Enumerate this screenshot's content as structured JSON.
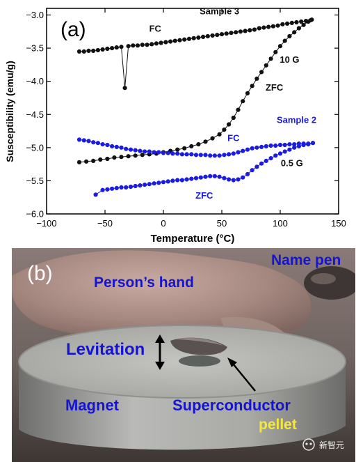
{
  "chart_data": {
    "type": "scatter",
    "panel_label": "(a)",
    "xlabel": "Temperature (°C)",
    "ylabel": "Susceptibility (emu/g)",
    "xlim": [
      -100,
      150
    ],
    "ylim": [
      -6.0,
      -2.9
    ],
    "xticks": [
      -100,
      -50,
      0,
      50,
      100,
      150
    ],
    "xtick_labels": [
      "−100",
      "−50",
      "0",
      "50",
      "100",
      "150"
    ],
    "yticks": [
      -6.0,
      -5.5,
      -5.0,
      -4.5,
      -4.0,
      -3.5,
      -3.0
    ],
    "ytick_labels": [
      "−6.0",
      "−5.5",
      "−5.0",
      "−4.5",
      "−4.0",
      "−3.5",
      "−3.0"
    ],
    "grid": false,
    "series": [
      {
        "group": "Sample 3",
        "field": "10 G",
        "mode": "FC",
        "color": "#111111",
        "points": [
          [
            -72,
            -3.55
          ],
          [
            -68,
            -3.55
          ],
          [
            -64,
            -3.54
          ],
          [
            -60,
            -3.54
          ],
          [
            -56,
            -3.53
          ],
          [
            -52,
            -3.52
          ],
          [
            -48,
            -3.51
          ],
          [
            -44,
            -3.5
          ],
          [
            -40,
            -3.49
          ],
          [
            -36,
            -3.48
          ],
          [
            -33,
            -4.1
          ],
          [
            -30,
            -3.47
          ],
          [
            -26,
            -3.46
          ],
          [
            -22,
            -3.46
          ],
          [
            -18,
            -3.45
          ],
          [
            -14,
            -3.45
          ],
          [
            -10,
            -3.44
          ],
          [
            -6,
            -3.43
          ],
          [
            -2,
            -3.42
          ],
          [
            2,
            -3.41
          ],
          [
            6,
            -3.4
          ],
          [
            10,
            -3.39
          ],
          [
            14,
            -3.38
          ],
          [
            18,
            -3.37
          ],
          [
            22,
            -3.36
          ],
          [
            26,
            -3.35
          ],
          [
            30,
            -3.34
          ],
          [
            34,
            -3.33
          ],
          [
            38,
            -3.32
          ],
          [
            42,
            -3.31
          ],
          [
            46,
            -3.3
          ],
          [
            50,
            -3.29
          ],
          [
            54,
            -3.28
          ],
          [
            58,
            -3.27
          ],
          [
            62,
            -3.26
          ],
          [
            66,
            -3.25
          ],
          [
            70,
            -3.24
          ],
          [
            74,
            -3.23
          ],
          [
            78,
            -3.22
          ],
          [
            82,
            -3.2
          ],
          [
            86,
            -3.19
          ],
          [
            90,
            -3.18
          ],
          [
            94,
            -3.17
          ],
          [
            98,
            -3.16
          ],
          [
            102,
            -3.14
          ],
          [
            106,
            -3.13
          ],
          [
            110,
            -3.12
          ],
          [
            114,
            -3.11
          ],
          [
            118,
            -3.1
          ],
          [
            122,
            -3.09
          ],
          [
            126,
            -3.08
          ]
        ]
      },
      {
        "group": "Sample 3",
        "field": "10 G",
        "mode": "ZFC",
        "color": "#111111",
        "points": [
          [
            -72,
            -5.22
          ],
          [
            -66,
            -5.21
          ],
          [
            -60,
            -5.2
          ],
          [
            -54,
            -5.18
          ],
          [
            -48,
            -5.17
          ],
          [
            -42,
            -5.15
          ],
          [
            -36,
            -5.14
          ],
          [
            -30,
            -5.13
          ],
          [
            -24,
            -5.12
          ],
          [
            -18,
            -5.11
          ],
          [
            -12,
            -5.1
          ],
          [
            -6,
            -5.09
          ],
          [
            0,
            -5.07
          ],
          [
            6,
            -5.05
          ],
          [
            12,
            -5.03
          ],
          [
            18,
            -5.01
          ],
          [
            24,
            -4.98
          ],
          [
            30,
            -4.95
          ],
          [
            36,
            -4.91
          ],
          [
            42,
            -4.86
          ],
          [
            48,
            -4.8
          ],
          [
            52,
            -4.73
          ],
          [
            56,
            -4.65
          ],
          [
            60,
            -4.55
          ],
          [
            64,
            -4.43
          ],
          [
            68,
            -4.3
          ],
          [
            72,
            -4.18
          ],
          [
            76,
            -4.07
          ],
          [
            80,
            -3.96
          ],
          [
            84,
            -3.86
          ],
          [
            88,
            -3.76
          ],
          [
            92,
            -3.66
          ],
          [
            96,
            -3.56
          ],
          [
            100,
            -3.47
          ],
          [
            104,
            -3.39
          ],
          [
            108,
            -3.32
          ],
          [
            112,
            -3.26
          ],
          [
            116,
            -3.2
          ],
          [
            120,
            -3.15
          ],
          [
            124,
            -3.1
          ],
          [
            127,
            -3.07
          ]
        ]
      },
      {
        "group": "Sample 2",
        "field": "0.5 G",
        "mode": "FC",
        "color": "#1c1ce0",
        "points": [
          [
            -72,
            -4.88
          ],
          [
            -68,
            -4.89
          ],
          [
            -64,
            -4.9
          ],
          [
            -60,
            -4.92
          ],
          [
            -56,
            -4.93
          ],
          [
            -52,
            -4.95
          ],
          [
            -48,
            -4.96
          ],
          [
            -44,
            -4.98
          ],
          [
            -40,
            -4.99
          ],
          [
            -36,
            -5.0
          ],
          [
            -32,
            -5.02
          ],
          [
            -28,
            -5.03
          ],
          [
            -24,
            -5.04
          ],
          [
            -20,
            -5.05
          ],
          [
            -16,
            -5.06
          ],
          [
            -12,
            -5.06
          ],
          [
            -8,
            -5.07
          ],
          [
            -4,
            -5.07
          ],
          [
            0,
            -5.08
          ],
          [
            4,
            -5.08
          ],
          [
            8,
            -5.09
          ],
          [
            12,
            -5.09
          ],
          [
            16,
            -5.1
          ],
          [
            20,
            -5.1
          ],
          [
            24,
            -5.1
          ],
          [
            28,
            -5.11
          ],
          [
            32,
            -5.11
          ],
          [
            36,
            -5.11
          ],
          [
            40,
            -5.12
          ],
          [
            44,
            -5.12
          ],
          [
            48,
            -5.12
          ],
          [
            52,
            -5.11
          ],
          [
            56,
            -5.1
          ],
          [
            60,
            -5.09
          ],
          [
            64,
            -5.07
          ],
          [
            68,
            -5.05
          ],
          [
            72,
            -5.03
          ],
          [
            76,
            -5.01
          ],
          [
            80,
            -5.0
          ],
          [
            84,
            -4.99
          ],
          [
            88,
            -4.98
          ],
          [
            92,
            -4.97
          ],
          [
            96,
            -4.97
          ],
          [
            100,
            -4.96
          ],
          [
            104,
            -4.96
          ],
          [
            108,
            -4.95
          ],
          [
            112,
            -4.95
          ],
          [
            116,
            -4.94
          ],
          [
            120,
            -4.94
          ],
          [
            124,
            -4.94
          ],
          [
            128,
            -4.93
          ]
        ]
      },
      {
        "group": "Sample 2",
        "field": "0.5 G",
        "mode": "ZFC",
        "color": "#1c1ce0",
        "points": [
          [
            -58,
            -5.71
          ],
          [
            -52,
            -5.64
          ],
          [
            -48,
            -5.63
          ],
          [
            -44,
            -5.62
          ],
          [
            -40,
            -5.61
          ],
          [
            -36,
            -5.6
          ],
          [
            -32,
            -5.6
          ],
          [
            -28,
            -5.59
          ],
          [
            -24,
            -5.58
          ],
          [
            -20,
            -5.57
          ],
          [
            -16,
            -5.56
          ],
          [
            -12,
            -5.55
          ],
          [
            -8,
            -5.54
          ],
          [
            -4,
            -5.53
          ],
          [
            0,
            -5.52
          ],
          [
            4,
            -5.51
          ],
          [
            8,
            -5.5
          ],
          [
            12,
            -5.49
          ],
          [
            16,
            -5.49
          ],
          [
            20,
            -5.48
          ],
          [
            24,
            -5.47
          ],
          [
            28,
            -5.46
          ],
          [
            32,
            -5.45
          ],
          [
            36,
            -5.44
          ],
          [
            40,
            -5.43
          ],
          [
            44,
            -5.43
          ],
          [
            48,
            -5.44
          ],
          [
            52,
            -5.46
          ],
          [
            56,
            -5.48
          ],
          [
            60,
            -5.49
          ],
          [
            64,
            -5.48
          ],
          [
            68,
            -5.45
          ],
          [
            72,
            -5.4
          ],
          [
            76,
            -5.34
          ],
          [
            80,
            -5.29
          ],
          [
            84,
            -5.24
          ],
          [
            88,
            -5.2
          ],
          [
            92,
            -5.16
          ],
          [
            96,
            -5.12
          ],
          [
            100,
            -5.09
          ],
          [
            104,
            -5.06
          ],
          [
            108,
            -5.03
          ],
          [
            112,
            -5.0
          ],
          [
            116,
            -4.98
          ],
          [
            120,
            -4.96
          ],
          [
            124,
            -4.95
          ],
          [
            128,
            -4.93
          ]
        ]
      }
    ],
    "annotations": [
      {
        "text": "Sample 3",
        "x": 48,
        "y": -2.99,
        "color": "#111111"
      },
      {
        "text": "FC",
        "x": -7,
        "y": -3.25,
        "color": "#111111"
      },
      {
        "text": "10 G",
        "x": 108,
        "y": -3.72,
        "color": "#111111"
      },
      {
        "text": "ZFC",
        "x": 95,
        "y": -4.14,
        "color": "#111111"
      },
      {
        "text": "Sample 2",
        "x": 114,
        "y": -4.63,
        "color": "#1c1ce0"
      },
      {
        "text": "FC",
        "x": 60,
        "y": -4.9,
        "color": "#1c1ce0"
      },
      {
        "text": "0.5 G",
        "x": 110,
        "y": -5.28,
        "color": "#111111"
      },
      {
        "text": "ZFC",
        "x": 35,
        "y": -5.77,
        "color": "#1c1ce0"
      }
    ]
  },
  "photo": {
    "panel_label": "(b)",
    "labels": {
      "name_pen": "Name pen",
      "persons_hand": "Person’s hand",
      "levitation": "Levitation",
      "magnet": "Magnet",
      "superconductor": "Superconductor",
      "pellet": "pellet"
    },
    "label_color": "#1515d0",
    "pellet_color": "#f5e83a",
    "watermark": "新智元"
  }
}
